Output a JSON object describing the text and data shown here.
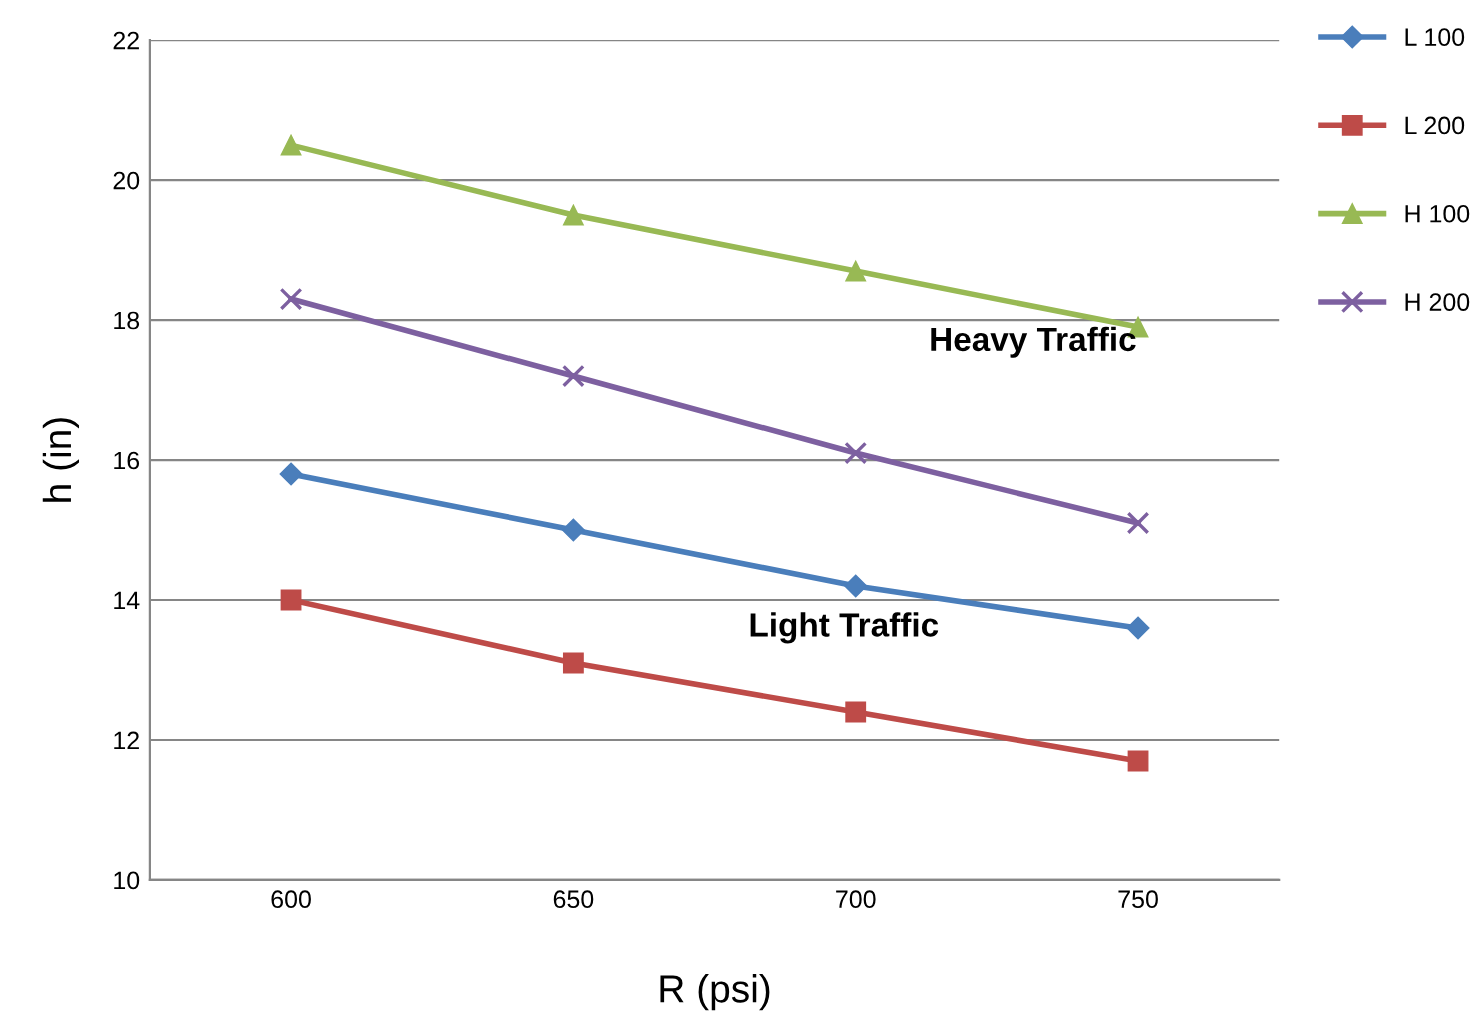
{
  "chart_data": {
    "type": "line",
    "xlabel": "R (psi)",
    "ylabel": "h (in)",
    "categories": [
      "600",
      "650",
      "700",
      "750"
    ],
    "series": [
      {
        "name": "L 100",
        "color": "#4a7ebb",
        "marker": "diamond",
        "values": [
          15.8,
          15.0,
          14.2,
          13.6
        ]
      },
      {
        "name": "L 200",
        "color": "#be4b48",
        "marker": "square",
        "values": [
          14.0,
          13.1,
          12.4,
          11.7
        ]
      },
      {
        "name": "H 100",
        "color": "#98b954",
        "marker": "triangle",
        "values": [
          20.5,
          19.5,
          18.7,
          17.9
        ]
      },
      {
        "name": "H 200",
        "color": "#7d60a0",
        "marker": "cross",
        "values": [
          18.3,
          17.2,
          16.1,
          15.1
        ]
      }
    ],
    "ylim": [
      10,
      22
    ],
    "yticks": [
      10,
      12,
      14,
      16,
      18,
      20,
      22
    ],
    "grid": "y",
    "legend": "top right",
    "annotations": [
      "Heavy Traffic",
      "Light Traffic"
    ]
  }
}
